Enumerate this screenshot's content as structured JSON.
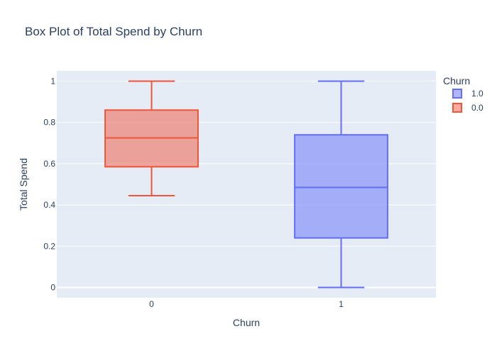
{
  "chart_data": {
    "type": "box",
    "title": "Box Plot of Total Spend by Churn",
    "xlabel": "Churn",
    "ylabel": "Total Spend",
    "categories": [
      "0",
      "1"
    ],
    "ylim": [
      -0.05,
      1.05
    ],
    "yticks": [
      0,
      0.2,
      0.4,
      0.6,
      0.8,
      1
    ],
    "ytick_labels": [
      "0",
      "0.2",
      "0.4",
      "0.6",
      "0.8",
      "1"
    ],
    "grid": true,
    "legend": {
      "title": "Churn",
      "placement": "top-right"
    },
    "series": [
      {
        "name": "1.0",
        "category": "1",
        "color": "#636efa",
        "fill": "rgba(99,110,250,0.5)",
        "min": 0.0,
        "q1": 0.24,
        "median": 0.485,
        "q3": 0.74,
        "max": 1.0
      },
      {
        "name": "0.0",
        "category": "0",
        "color": "#ef553b",
        "fill": "rgba(239,85,59,0.5)",
        "min": 0.445,
        "q1": 0.585,
        "median": 0.725,
        "q3": 0.86,
        "max": 1.0
      }
    ]
  }
}
